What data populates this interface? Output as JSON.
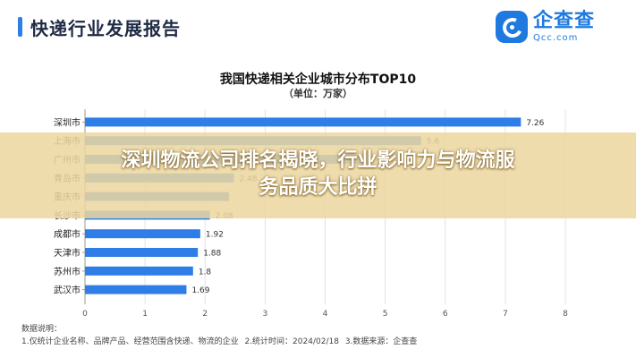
{
  "header": {
    "title": "快递行业发展报告",
    "logo_cn": "企查查",
    "logo_en": "Qcc.com"
  },
  "chart_data": {
    "type": "bar",
    "orientation": "horizontal",
    "title": "我国快递相关企业城市分布TOP10",
    "subtitle": "（单位：万家）",
    "categories": [
      "深圳市",
      "上海市",
      "广州市",
      "青岛市",
      "重庆市",
      "长沙市",
      "成都市",
      "天津市",
      "苏州市",
      "武汉市"
    ],
    "values": [
      7.26,
      5.6,
      4.6,
      2.48,
      2.4,
      2.08,
      1.92,
      1.88,
      1.8,
      1.69
    ],
    "value_labels": [
      "7.26",
      "5.6",
      "",
      "2.48",
      "",
      "2.08",
      "1.92",
      "1.88",
      "1.8",
      "1.69"
    ],
    "xlim": [
      0,
      8
    ],
    "xticks": [
      "0",
      "1",
      "2",
      "3",
      "4",
      "5",
      "6",
      "7",
      "8"
    ],
    "grid": true,
    "bar_color": "#2f7ee8"
  },
  "overlay": {
    "headline_line1": "深圳物流公司排名揭晓，行业影响力与物流服",
    "headline_line2": "务品质大比拼"
  },
  "notes": {
    "heading": "数据说明：",
    "item1": "1.仅统计企业名称、品牌产品、经营范围含快递、物流的企业",
    "item2": "2.统计时间：2024/02/18",
    "item3": "3.数据来源：企查查"
  }
}
